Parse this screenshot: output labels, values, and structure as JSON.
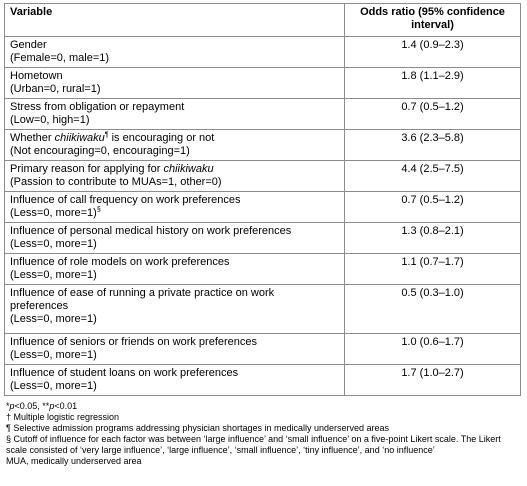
{
  "table": {
    "header": [
      "Variable",
      "Odds ratio (95% confidence interval)"
    ],
    "rows": [
      {
        "variable": [
          "Gender",
          "(Female=0, male=1)"
        ],
        "odds_ratio": "1.4 (0.9–2.3)"
      },
      {
        "variable": [
          "Hometown",
          "(Urban=0, rural=1)"
        ],
        "odds_ratio": "1.8 (1.1–2.9)"
      },
      {
        "variable": [
          "Stress from obligation or repayment",
          "(Low=0, high=1)"
        ],
        "odds_ratio": "0.7 (0.5–1.2)"
      },
      {
        "variable": [
          [
            "Whether ",
            "chiikiwaku",
            "¶",
            " is encouraging or not"
          ],
          "(Not encouraging=0, encouraging=1)"
        ],
        "odds_ratio": "3.6 (2.3–5.8)"
      },
      {
        "variable": [
          [
            "Primary reason for applying for ",
            "chiikiwaku"
          ],
          "(Passion to contribute to MUAs=1, other=0)"
        ],
        "odds_ratio": "4.4 (2.5–7.5)"
      },
      {
        "variable": [
          "Influence of call frequency on work preferences",
          [
            "(Less=0, more=1)",
            "§"
          ]
        ],
        "odds_ratio": "0.7 (0.5–1.2)"
      },
      {
        "variable": [
          "Influence of personal medical history on work preferences",
          "(Less=0, more=1)"
        ],
        "odds_ratio": "1.3 (0.8–2.1)"
      },
      {
        "variable": [
          "Influence of role models on work preferences",
          "(Less=0, more=1)"
        ],
        "odds_ratio": "1.1 (0.7–1.7)"
      },
      {
        "variable": [
          "Influence of ease of running a private practice on work preferences",
          "(Less=0, more=1)"
        ],
        "odds_ratio": "0.5 (0.3–1.0)"
      },
      {
        "variable": [
          "Influence of seniors or friends on work preferences",
          "(Less=0, more=1)"
        ],
        "odds_ratio": "1.0 (0.6–1.7)"
      },
      {
        "variable": [
          "Influence of student loans on work preferences",
          "(Less=0, more=1)"
        ],
        "odds_ratio": "1.7 (1.0–2.7)"
      }
    ]
  },
  "footnotes": [
    [
      "*",
      "p",
      "<0.05, **",
      "p",
      "<0.01"
    ],
    "† Multiple logistic regression",
    "¶ Selective admission programs addressing physician shortages in medically underserved areas",
    "§ Cutoff of influence for each factor was between ‘large influence’ and ‘small influence’ on a five-point Likert scale. The Likert scale consisted of ‘very large influence’, ‘large influence’, ‘small influence’, ‘tiny influence’, and ‘no influence’",
    "MUA, medically underserved area"
  ]
}
